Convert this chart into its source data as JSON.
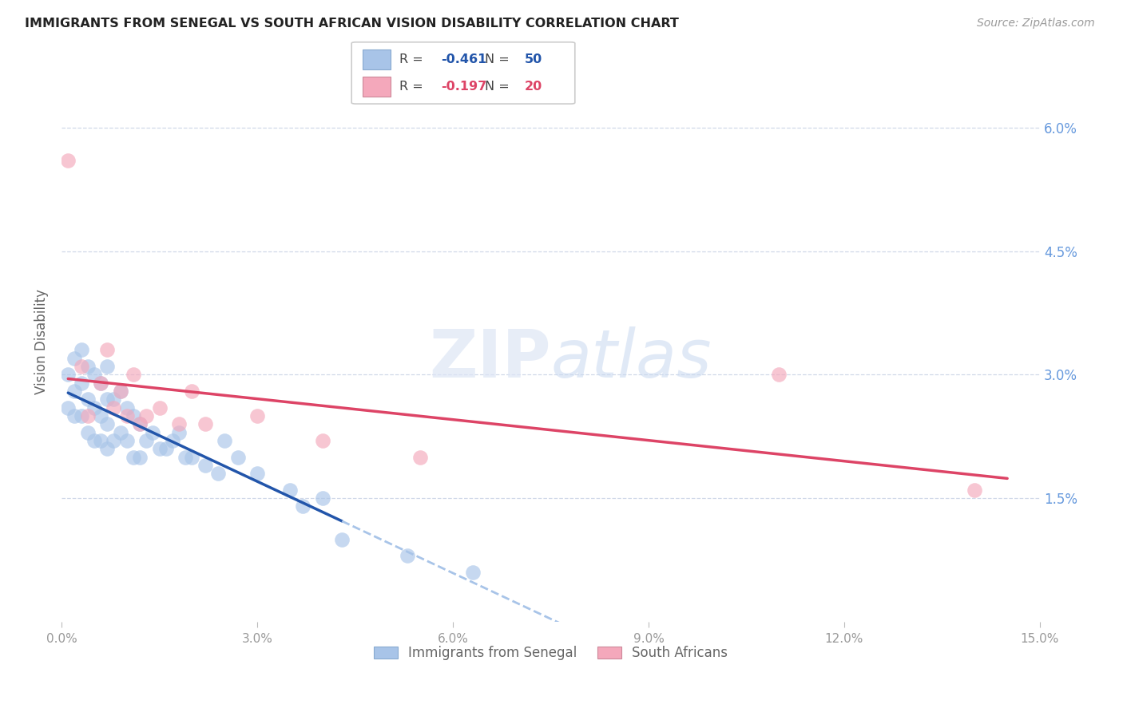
{
  "title": "IMMIGRANTS FROM SENEGAL VS SOUTH AFRICAN VISION DISABILITY CORRELATION CHART",
  "source": "Source: ZipAtlas.com",
  "ylabel": "Vision Disability",
  "legend_label1": "Immigrants from Senegal",
  "legend_label2": "South Africans",
  "R1": -0.461,
  "N1": 50,
  "R2": -0.197,
  "N2": 20,
  "color1": "#a8c4e8",
  "color2": "#f4a8bb",
  "trendline1_color": "#2255aa",
  "trendline2_color": "#dd4466",
  "trendline1_dashed_color": "#a8c4e8",
  "xlim": [
    0.0,
    0.15
  ],
  "ylim": [
    0.0,
    0.068
  ],
  "xticks": [
    0.0,
    0.03,
    0.06,
    0.09,
    0.12,
    0.15
  ],
  "xtick_labels": [
    "0.0%",
    "3.0%",
    "6.0%",
    "9.0%",
    "12.0%",
    "15.0%"
  ],
  "right_yticks": [
    0.015,
    0.03,
    0.045,
    0.06
  ],
  "right_ytick_labels": [
    "1.5%",
    "3.0%",
    "4.5%",
    "6.0%"
  ],
  "blue_x": [
    0.001,
    0.001,
    0.002,
    0.002,
    0.002,
    0.003,
    0.003,
    0.003,
    0.004,
    0.004,
    0.004,
    0.005,
    0.005,
    0.005,
    0.006,
    0.006,
    0.006,
    0.007,
    0.007,
    0.007,
    0.007,
    0.008,
    0.008,
    0.009,
    0.009,
    0.01,
    0.01,
    0.011,
    0.011,
    0.012,
    0.012,
    0.013,
    0.014,
    0.015,
    0.016,
    0.017,
    0.018,
    0.019,
    0.02,
    0.022,
    0.024,
    0.025,
    0.027,
    0.03,
    0.035,
    0.037,
    0.04,
    0.043,
    0.053,
    0.063
  ],
  "blue_y": [
    0.03,
    0.026,
    0.032,
    0.028,
    0.025,
    0.033,
    0.029,
    0.025,
    0.031,
    0.027,
    0.023,
    0.03,
    0.026,
    0.022,
    0.029,
    0.025,
    0.022,
    0.031,
    0.027,
    0.024,
    0.021,
    0.027,
    0.022,
    0.028,
    0.023,
    0.026,
    0.022,
    0.025,
    0.02,
    0.024,
    0.02,
    0.022,
    0.023,
    0.021,
    0.021,
    0.022,
    0.023,
    0.02,
    0.02,
    0.019,
    0.018,
    0.022,
    0.02,
    0.018,
    0.016,
    0.014,
    0.015,
    0.01,
    0.008,
    0.006
  ],
  "pink_x": [
    0.001,
    0.003,
    0.004,
    0.006,
    0.007,
    0.008,
    0.009,
    0.01,
    0.011,
    0.012,
    0.013,
    0.015,
    0.018,
    0.02,
    0.022,
    0.03,
    0.04,
    0.055,
    0.11,
    0.14
  ],
  "pink_y": [
    0.056,
    0.031,
    0.025,
    0.029,
    0.033,
    0.026,
    0.028,
    0.025,
    0.03,
    0.024,
    0.025,
    0.026,
    0.024,
    0.028,
    0.024,
    0.025,
    0.022,
    0.02,
    0.03,
    0.016
  ],
  "trendline1_x_solid_start": 0.001,
  "trendline1_x_solid_end": 0.043,
  "trendline1_x_dashed_end": 0.085,
  "trendline2_x_start": 0.001,
  "trendline2_x_end": 0.145,
  "background_color": "#ffffff",
  "grid_color": "#d0d8e8"
}
